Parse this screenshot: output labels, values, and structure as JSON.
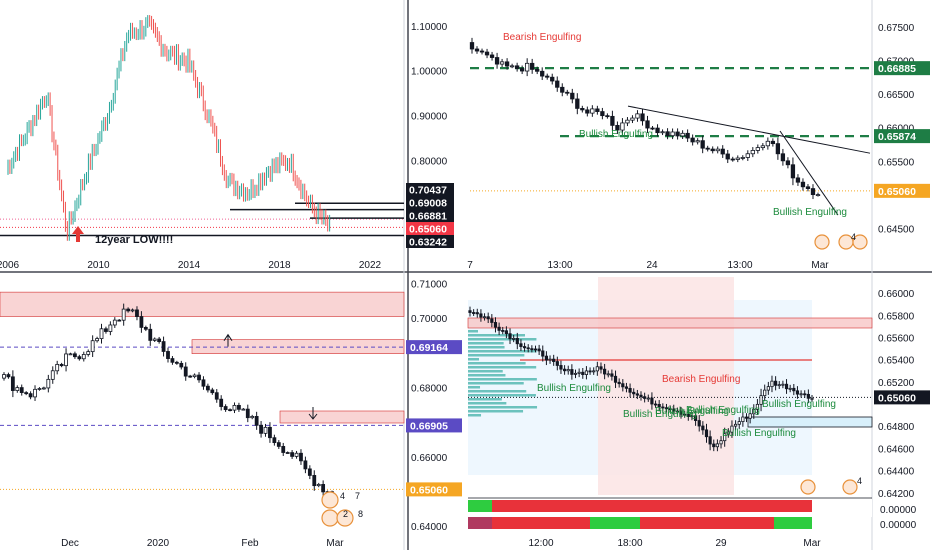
{
  "colors": {
    "up": "#26a69a",
    "down": "#ef5350",
    "up_body": "#ffffff",
    "candle_outline": "#131722",
    "dark_label": "#131722",
    "red_label": "#f23645",
    "green_text": "#1b8a3c",
    "red_text": "#e53935",
    "dashed_green": "#1e7d45",
    "zone_pink": "#f7c6c6",
    "zone_pink_border": "#d32f2f",
    "dotted_orange": "#f5a623",
    "purple_dashed": "#5b4bc4",
    "axis_text": "#131722",
    "grid": "#e0e3eb"
  },
  "charts": {
    "top_left": {
      "annotation": "12year LOW!!!!",
      "x_ticks": [
        "2006",
        "2010",
        "2014",
        "2018",
        "2022"
      ],
      "y_ticks": [
        "1.10000",
        "1.00000",
        "0.90000",
        "0.80000"
      ],
      "price_labels": [
        {
          "text": "0.70437",
          "style": "dark"
        },
        {
          "text": "0.69008",
          "style": "dark"
        },
        {
          "text": "0.66881",
          "style": "dark"
        },
        {
          "text": "0.65060",
          "style": "red"
        },
        {
          "text": "0.63242",
          "style": "dark"
        }
      ]
    },
    "top_right": {
      "x_ticks": [
        "7",
        "13:00",
        "24",
        "13:00",
        "Mar"
      ],
      "y_ticks": [
        "0.67500",
        "0.67000",
        "0.66500",
        "0.66000",
        "0.65500",
        "0.64500"
      ],
      "price_labels": [
        {
          "text": "0.66885",
          "style": "green"
        },
        {
          "text": "0.65874",
          "style": "green"
        },
        {
          "text": "0.65060",
          "style": "orange"
        }
      ],
      "annotations": [
        {
          "text": "Bearish Engulfing",
          "kind": "bearish"
        },
        {
          "text": "Bullish Engulfing",
          "kind": "bullish"
        },
        {
          "text": "Bullish Engulfing",
          "kind": "bullish"
        }
      ],
      "badge_count": "4"
    },
    "bottom_left": {
      "x_ticks": [
        "Dec",
        "2020",
        "Feb",
        "Mar"
      ],
      "y_ticks": [
        "0.71000",
        "0.70000",
        "0.68000",
        "0.66000",
        "0.64000"
      ],
      "price_labels": [
        {
          "text": "0.69164",
          "style": "purple"
        },
        {
          "text": "0.66905",
          "style": "purple"
        },
        {
          "text": "0.65060",
          "style": "orange"
        }
      ],
      "badge_counts": [
        "4",
        "7",
        "2",
        "8"
      ]
    },
    "bottom_right": {
      "x_ticks": [
        "12:00",
        "18:00",
        "29",
        "Mar"
      ],
      "y_ticks": [
        "0.66000",
        "0.65800",
        "0.65600",
        "0.65400",
        "0.65200",
        "0.64800",
        "0.64600",
        "0.64400",
        "0.64200"
      ],
      "price_labels": [
        {
          "text": "0.65060",
          "style": "dark"
        }
      ],
      "indicator_ticks": [
        "0.00000",
        "0.00000"
      ],
      "annotations": [
        {
          "text": "Bearish Engulfing",
          "kind": "bearish"
        },
        {
          "text": "Bullish Engulfing",
          "kind": "bullish"
        },
        {
          "text": "Bullish Engulfing",
          "kind": "bullish"
        },
        {
          "text": "Bullish Engulfing",
          "kind": "bullish"
        },
        {
          "text": "Bullish Engulfing",
          "kind": "bullish"
        },
        {
          "text": "Bullish Engulfing",
          "kind": "bullish"
        },
        {
          "text": "Bullish Engulfing",
          "kind": "bullish"
        }
      ],
      "badge_count": "4"
    }
  },
  "chart_data": [
    {
      "type": "line",
      "panel": "top_left",
      "ylim": [
        0.6,
        1.14
      ],
      "x": [
        2006,
        2007,
        2008,
        2008.8,
        2009,
        2010,
        2011,
        2011.5,
        2012,
        2013,
        2014,
        2015,
        2016,
        2017,
        2018,
        2019,
        2020
      ],
      "values": [
        0.78,
        0.86,
        0.95,
        0.64,
        0.78,
        0.9,
        1.08,
        1.1,
        1.04,
        1.02,
        0.9,
        0.75,
        0.73,
        0.78,
        0.8,
        0.7,
        0.65
      ],
      "hlines": [
        0.70437,
        0.69008,
        0.66881,
        0.6506,
        0.63242
      ]
    },
    {
      "type": "line",
      "panel": "top_right",
      "ylim": [
        0.6418,
        0.6775
      ],
      "x_ticks": [
        "7",
        "13:00",
        "24",
        "13:00",
        "Mar"
      ],
      "values": [
        0.6722,
        0.671,
        0.6694,
        0.6688,
        0.669,
        0.6678,
        0.666,
        0.664,
        0.6622,
        0.6622,
        0.66,
        0.662,
        0.6605,
        0.6592,
        0.659,
        0.658,
        0.657,
        0.656,
        0.6555,
        0.6566,
        0.6585,
        0.655,
        0.652,
        0.6506
      ],
      "hlines": [
        0.66885,
        0.65874,
        0.6506
      ]
    },
    {
      "type": "line",
      "panel": "bottom_left",
      "ylim": [
        0.636,
        0.711
      ],
      "x_ticks": [
        "Dec",
        "2020",
        "Feb",
        "Mar"
      ],
      "values": [
        0.684,
        0.68,
        0.678,
        0.682,
        0.688,
        0.69,
        0.694,
        0.7,
        0.702,
        0.696,
        0.69,
        0.686,
        0.682,
        0.678,
        0.674,
        0.672,
        0.668,
        0.664,
        0.66,
        0.654,
        0.65
      ],
      "hlines": [
        0.69164,
        0.66905,
        0.6506
      ]
    },
    {
      "type": "line",
      "panel": "bottom_right",
      "ylim": [
        0.6418,
        0.661
      ],
      "x_ticks": [
        "12:00",
        "18:00",
        "29",
        "Mar"
      ],
      "values": [
        0.6585,
        0.6578,
        0.6565,
        0.6552,
        0.6545,
        0.653,
        0.6528,
        0.6532,
        0.652,
        0.6508,
        0.65,
        0.6495,
        0.6487,
        0.646,
        0.648,
        0.6492,
        0.652,
        0.6515,
        0.6506
      ],
      "hlines": [
        0.6506
      ]
    }
  ]
}
